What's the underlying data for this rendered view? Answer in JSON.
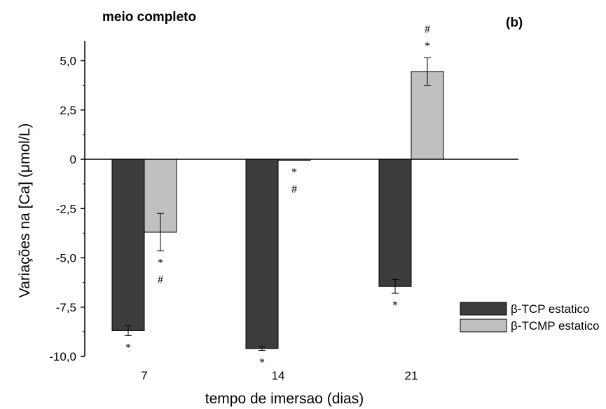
{
  "chart_data": {
    "type": "bar",
    "title": "meio completo",
    "panel_label": "(b)",
    "xlabel": "tempo de imersao (dias)",
    "ylabel": "Variações na [Ca] (μmol/L)",
    "categories": [
      "7",
      "14",
      "21"
    ],
    "ylim": [
      -10.0,
      6.0
    ],
    "yticks": [
      5.0,
      2.5,
      0,
      -2.5,
      -5.0,
      -7.5,
      -10.0
    ],
    "ytick_labels": [
      "5,0",
      "2,5",
      "0",
      "-2,5",
      "-5,0",
      "-7,5",
      "-10,0"
    ],
    "legend_position": "lower-right",
    "series": [
      {
        "name": "β-TCP estatico",
        "color": "#3c3c3c",
        "values": [
          -8.7,
          -9.6,
          -6.45
        ],
        "errors": [
          0.25,
          0.1,
          0.35
        ],
        "markers": [
          [
            "*"
          ],
          [
            "*"
          ],
          [
            "*"
          ]
        ]
      },
      {
        "name": "β-TCMP estatico",
        "color": "#c0c0c0",
        "values": [
          -3.7,
          -0.05,
          4.45
        ],
        "errors": [
          0.95,
          0,
          0.7
        ],
        "markers": [
          [
            "*",
            "#"
          ],
          [
            "*",
            "#"
          ],
          [
            "#",
            "*"
          ]
        ]
      }
    ]
  }
}
